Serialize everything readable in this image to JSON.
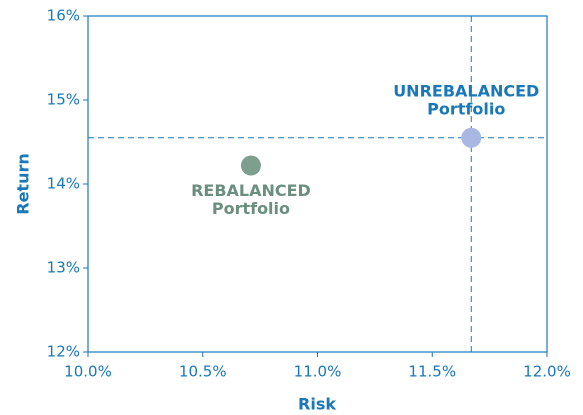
{
  "chart_data": {
    "type": "scatter",
    "xlabel": "Risk",
    "ylabel": "Return",
    "xlim": [
      10.0,
      12.0
    ],
    "xticks": [
      {
        "value": 10.0,
        "label": "10.0%"
      },
      {
        "value": 10.5,
        "label": "10.5%"
      },
      {
        "value": 11.0,
        "label": "11.0%"
      },
      {
        "value": 11.5,
        "label": "11.5%"
      },
      {
        "value": 12.0,
        "label": "12.0%"
      }
    ],
    "ylim": [
      12,
      16
    ],
    "yticks": [
      {
        "value": 12,
        "label": "12%"
      },
      {
        "value": 13,
        "label": "13%"
      },
      {
        "value": 14,
        "label": "14%"
      },
      {
        "value": 15,
        "label": "15%"
      },
      {
        "value": 16,
        "label": "16%"
      }
    ],
    "axis_color": "#1a78b8",
    "series": [
      {
        "label": [
          "REBALANCED",
          "Portfolio"
        ],
        "color": "#7d9f90",
        "label_color": "#6a8f7f",
        "x": [
          10.71
        ],
        "values": [
          14.22
        ],
        "label_position": "below",
        "crosshair": false
      },
      {
        "label": [
          "UNREBALANCED",
          "Portfolio"
        ],
        "color": "#a8b8e2",
        "label_color": "#1a78b8",
        "x": [
          11.67
        ],
        "values": [
          14.55
        ],
        "label_position": "above",
        "crosshair": true
      }
    ]
  }
}
